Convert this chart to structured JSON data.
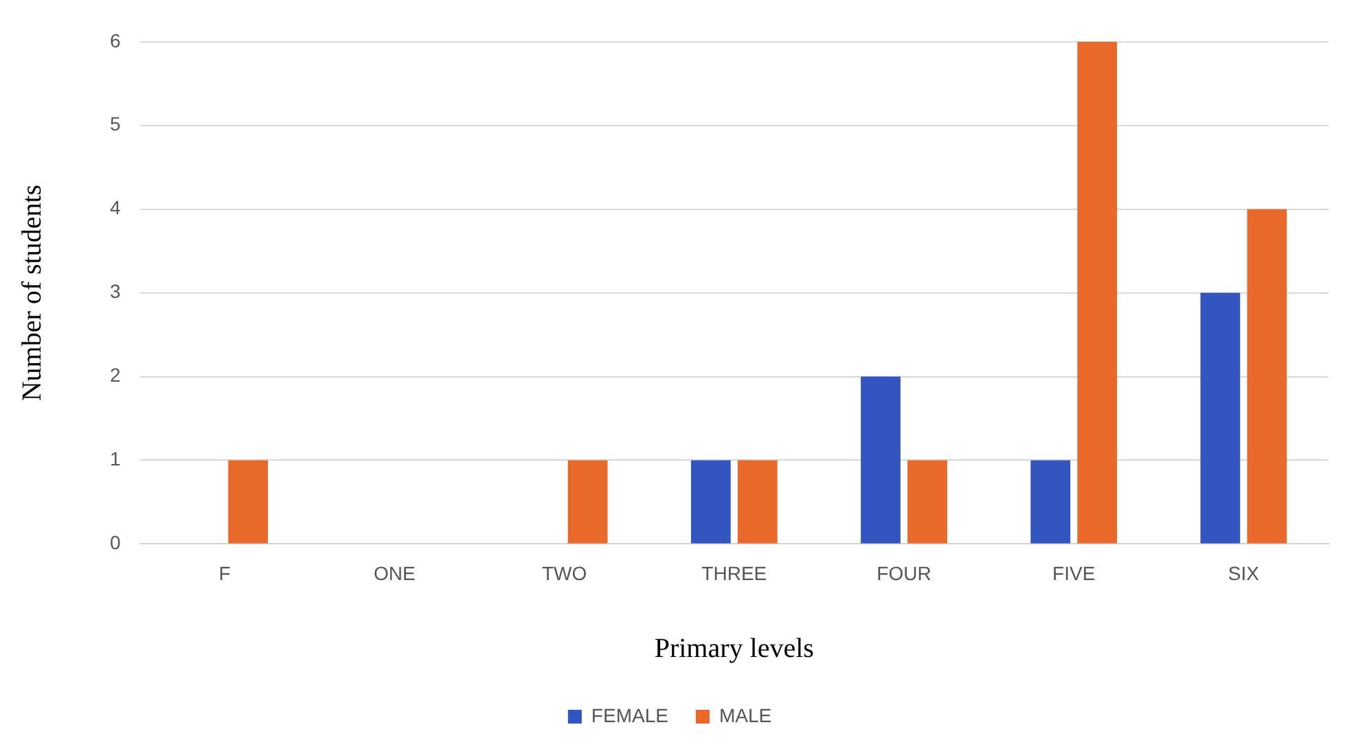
{
  "chart_data": {
    "type": "bar",
    "xlabel": "Primary levels",
    "ylabel": "Number of students",
    "categories": [
      "F",
      "ONE",
      "TWO",
      "THREE",
      "FOUR",
      "FIVE",
      "SIX"
    ],
    "series": [
      {
        "name": "FEMALE",
        "color": "#3355c0",
        "values": [
          0,
          0,
          0,
          1,
          2,
          1,
          3
        ]
      },
      {
        "name": "MALE",
        "color": "#e8692a",
        "values": [
          1,
          0,
          1,
          1,
          1,
          6,
          4
        ]
      }
    ],
    "ylim": [
      0,
      6
    ],
    "yticks": [
      0,
      1,
      2,
      3,
      4,
      5,
      6
    ],
    "grid": "y",
    "legend": "bottom"
  }
}
